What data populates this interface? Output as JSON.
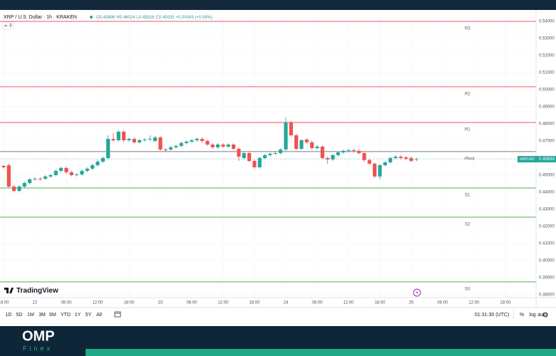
{
  "chart_data": {
    "type": "candlestick",
    "title": "XRP / U.S. Dollar · 1h · KRAKEN",
    "symbol_short": "XRPUSD",
    "change": "+0.00043 (+0.09%)",
    "ohlc_letters": [
      "O",
      "H",
      "L",
      "C"
    ],
    "up_color": "#26a69a",
    "down_color": "#ef5350",
    "grid": true,
    "open": [
      0.4554,
      0.4558,
      0.4433,
      0.4408,
      0.4433,
      0.4454,
      0.4475,
      0.4479,
      0.4479,
      0.4492,
      0.45,
      0.4525,
      0.4542,
      0.4517,
      0.45,
      0.4504,
      0.4525,
      0.4538,
      0.4558,
      0.4579,
      0.46,
      0.4712,
      0.4704,
      0.4754,
      0.4704,
      0.4712,
      0.4692,
      0.4704,
      0.4708,
      0.47,
      0.4721,
      0.465,
      0.465,
      0.4663,
      0.4671,
      0.4688,
      0.4696,
      0.4704,
      0.4712,
      0.47,
      0.4679,
      0.4663,
      0.4679,
      0.4667,
      0.4679,
      0.4654,
      0.46,
      0.4629,
      0.4583,
      0.4546,
      0.46,
      0.4617,
      0.4625,
      0.4629,
      0.465,
      0.4808,
      0.4733,
      0.4654,
      0.4708,
      0.4692,
      0.4658,
      0.4667,
      0.46,
      0.4592,
      0.4617,
      0.4633,
      0.4642,
      0.4646,
      0.4642,
      0.4629,
      0.4588,
      0.4567,
      0.4492,
      0.4558,
      0.4575,
      0.46,
      0.4608,
      0.4604,
      0.46,
      0.45898
    ],
    "high": [
      0.4562,
      0.4567,
      0.4442,
      0.4442,
      0.4462,
      0.4483,
      0.4488,
      0.4488,
      0.45,
      0.4508,
      0.4533,
      0.455,
      0.455,
      0.4525,
      0.4512,
      0.4533,
      0.4546,
      0.4567,
      0.4588,
      0.4608,
      0.4733,
      0.4746,
      0.4763,
      0.4762,
      0.4721,
      0.4721,
      0.4712,
      0.4717,
      0.4733,
      0.4729,
      0.4729,
      0.4658,
      0.4671,
      0.4679,
      0.4696,
      0.4704,
      0.4712,
      0.4721,
      0.4721,
      0.4708,
      0.4688,
      0.4688,
      0.4688,
      0.4688,
      0.4688,
      0.4663,
      0.4638,
      0.4638,
      0.4592,
      0.4608,
      0.4625,
      0.4633,
      0.4638,
      0.4658,
      0.4838,
      0.4817,
      0.4742,
      0.4712,
      0.4717,
      0.47,
      0.4675,
      0.4675,
      0.4608,
      0.4625,
      0.4642,
      0.465,
      0.4654,
      0.4654,
      0.465,
      0.4638,
      0.4596,
      0.4575,
      0.4567,
      0.4583,
      0.4608,
      0.4617,
      0.4617,
      0.4612,
      0.4608,
      0.46024
    ],
    "low": [
      0.4538,
      0.4425,
      0.44,
      0.44,
      0.4425,
      0.4446,
      0.4467,
      0.4467,
      0.4471,
      0.4483,
      0.4492,
      0.4517,
      0.4508,
      0.4492,
      0.4492,
      0.4496,
      0.4517,
      0.4529,
      0.455,
      0.4571,
      0.4592,
      0.4696,
      0.4696,
      0.4692,
      0.4696,
      0.4683,
      0.4683,
      0.4696,
      0.47,
      0.4692,
      0.4642,
      0.4633,
      0.4642,
      0.4654,
      0.4663,
      0.4679,
      0.4688,
      0.4696,
      0.4692,
      0.4671,
      0.4654,
      0.4654,
      0.4658,
      0.4658,
      0.4646,
      0.4583,
      0.4592,
      0.4575,
      0.4538,
      0.4538,
      0.4592,
      0.4608,
      0.4617,
      0.4621,
      0.4642,
      0.4725,
      0.4646,
      0.4646,
      0.4683,
      0.465,
      0.465,
      0.4592,
      0.4567,
      0.4583,
      0.4608,
      0.4625,
      0.4633,
      0.4633,
      0.4621,
      0.4579,
      0.4558,
      0.4483,
      0.4475,
      0.455,
      0.4567,
      0.4592,
      0.4592,
      0.4588,
      0.4575,
      0.45816
    ],
    "close": [
      0.4546,
      0.4433,
      0.4408,
      0.4433,
      0.4454,
      0.4475,
      0.4479,
      0.4475,
      0.4492,
      0.45,
      0.4525,
      0.4542,
      0.4517,
      0.45,
      0.4504,
      0.4525,
      0.4538,
      0.4558,
      0.4579,
      0.46,
      0.4712,
      0.4704,
      0.4754,
      0.4704,
      0.4712,
      0.4692,
      0.4704,
      0.4708,
      0.4712,
      0.4721,
      0.465,
      0.4646,
      0.4663,
      0.4671,
      0.4688,
      0.4696,
      0.4704,
      0.4712,
      0.47,
      0.4679,
      0.4663,
      0.4679,
      0.4667,
      0.4679,
      0.4654,
      0.4608,
      0.4629,
      0.4583,
      0.4546,
      0.46,
      0.4617,
      0.4625,
      0.4629,
      0.465,
      0.4808,
      0.4733,
      0.4654,
      0.4704,
      0.4692,
      0.4658,
      0.4667,
      0.46,
      0.4592,
      0.4617,
      0.4633,
      0.4642,
      0.4646,
      0.4642,
      0.4629,
      0.4588,
      0.4567,
      0.4492,
      0.4558,
      0.4575,
      0.46,
      0.4608,
      0.46,
      0.4596,
      0.4583,
      0.45933
    ],
    "levels": [
      {
        "name": "R3",
        "value": 0.54,
        "color": "#f7525f"
      },
      {
        "name": "R2",
        "value": 0.5017,
        "color": "#f7525f"
      },
      {
        "name": "R1",
        "value": 0.4808,
        "color": "#f7525f"
      },
      {
        "name": "Pivot",
        "value": 0.4638,
        "color": "#787b86"
      },
      {
        "name": "S1",
        "value": 0.4425,
        "color": "#4caf50"
      },
      {
        "name": "S2",
        "value": 0.4254,
        "color": "#4caf50"
      },
      {
        "name": "S3",
        "value": 0.3875,
        "color": "#4caf50"
      }
    ],
    "ylim": [
      0.3783,
      0.545
    ],
    "yticks": [
      {
        "value": 0.54,
        "label": "0.54000"
      },
      {
        "value": 0.53,
        "label": "0.53000"
      },
      {
        "value": 0.52,
        "label": "0.52000"
      },
      {
        "value": 0.51,
        "label": "0.51000"
      },
      {
        "value": 0.5,
        "label": "0.50000"
      },
      {
        "value": 0.49,
        "label": "0.49000"
      },
      {
        "value": 0.48,
        "label": "0.48000"
      },
      {
        "value": 0.47,
        "label": "0.47000"
      },
      {
        "value": 0.46,
        "label": "0.46000"
      },
      {
        "value": 0.45,
        "label": "0.45000"
      },
      {
        "value": 0.44,
        "label": "0.44000"
      },
      {
        "value": 0.43,
        "label": "0.43000"
      },
      {
        "value": 0.42,
        "label": "0.42000"
      },
      {
        "value": 0.41,
        "label": "0.41000"
      },
      {
        "value": 0.4,
        "label": "0.40000"
      },
      {
        "value": 0.39,
        "label": "0.39000"
      },
      {
        "value": 0.38,
        "label": "0.38000"
      }
    ],
    "xlim": [
      -0.68,
      101.6
    ],
    "xticks": [
      {
        "value": 0,
        "label": "18:00"
      },
      {
        "value": 6,
        "label": "22"
      },
      {
        "value": 12,
        "label": "06:00"
      },
      {
        "value": 18,
        "label": "12:00"
      },
      {
        "value": 24,
        "label": "18:00"
      },
      {
        "value": 30,
        "label": "23"
      },
      {
        "value": 36,
        "label": "06:00"
      },
      {
        "value": 42,
        "label": "12:00"
      },
      {
        "value": 48,
        "label": "18:00"
      },
      {
        "value": 54,
        "label": "24"
      },
      {
        "value": 60,
        "label": "06:00"
      },
      {
        "value": 66,
        "label": "12:00"
      },
      {
        "value": 72,
        "label": "18:00"
      },
      {
        "value": 78,
        "label": "25"
      },
      {
        "value": 84,
        "label": "06:00"
      },
      {
        "value": 90,
        "label": "12:00"
      },
      {
        "value": 96,
        "label": "18:00"
      }
    ]
  },
  "ui": {
    "indicator_count": 3,
    "logo": "TradingView",
    "ranges": [
      "1D",
      "5D",
      "1M",
      "3M",
      "6M",
      "YTD",
      "1Y",
      "5Y",
      "All"
    ],
    "clock": "01:31:30 (UTC)",
    "options": [
      "%",
      "log",
      "auto"
    ]
  },
  "brand": {
    "name": "OMP",
    "sub": "Finex"
  }
}
